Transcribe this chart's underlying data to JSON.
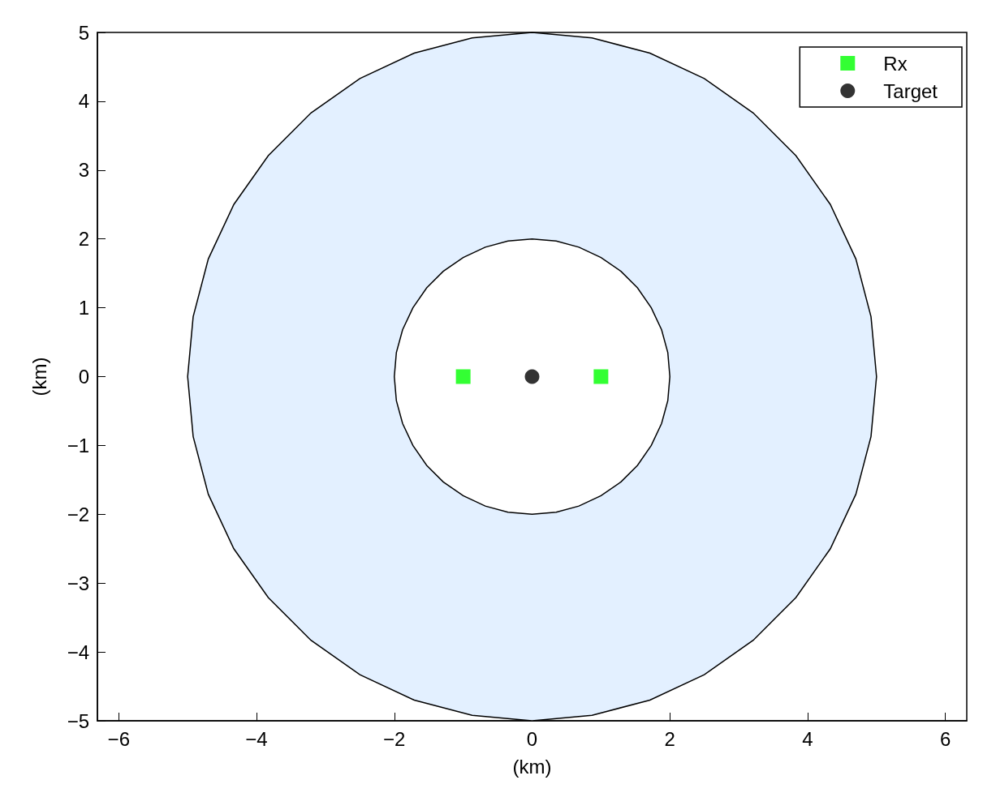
{
  "chart_data": {
    "type": "scatter",
    "xlabel": "(km)",
    "ylabel": "(km)",
    "xlim": [
      -6.31,
      6.31
    ],
    "ylim": [
      -5,
      5
    ],
    "xticks": [
      {
        "value": -6,
        "label": "−6"
      },
      {
        "value": -4,
        "label": "−4"
      },
      {
        "value": -2,
        "label": "−2"
      },
      0,
      2,
      4,
      6
    ],
    "yticks": [
      {
        "value": -5,
        "label": "−5"
      },
      {
        "value": -4,
        "label": "−4"
      },
      {
        "value": -3,
        "label": "−3"
      },
      {
        "value": -2,
        "label": "−2"
      },
      {
        "value": -1,
        "label": "−1"
      },
      0,
      1,
      2,
      3,
      4,
      5
    ],
    "legend": "top right",
    "series": [
      {
        "type": "area",
        "color": "#e3f0ff",
        "x": [
          5,
          4.92,
          4.7,
          4.33,
          3.83,
          3.21,
          2.5,
          1.71,
          0.87,
          0,
          -0.87,
          -1.71,
          -2.5,
          -3.21,
          -3.83,
          -4.33,
          -4.7,
          -4.92,
          -5,
          -4.92,
          -4.7,
          -4.33,
          -3.83,
          -3.21,
          -2.5,
          -1.71,
          -0.87,
          0,
          0.87,
          1.71,
          2.5,
          3.21,
          3.83,
          4.33,
          4.7,
          4.92
        ],
        "values": [
          0,
          0.87,
          1.71,
          2.5,
          3.21,
          3.83,
          4.33,
          4.7,
          4.92,
          5,
          4.92,
          4.7,
          4.33,
          3.83,
          3.21,
          2.5,
          1.71,
          0.87,
          0,
          -0.87,
          -1.71,
          -2.5,
          -3.21,
          -3.83,
          -4.33,
          -4.7,
          -4.92,
          -5,
          -4.92,
          -4.7,
          -4.33,
          -3.83,
          -3.21,
          -2.5,
          -1.71,
          -0.87
        ]
      },
      {
        "type": "area",
        "color": "#ffffff",
        "x": [
          2,
          1.97,
          1.88,
          1.73,
          1.53,
          1.29,
          1,
          0.68,
          0.35,
          0,
          -0.35,
          -0.68,
          -1,
          -1.29,
          -1.53,
          -1.73,
          -1.88,
          -1.97,
          -2,
          -1.97,
          -1.88,
          -1.73,
          -1.53,
          -1.29,
          -1,
          -0.68,
          -0.35,
          0,
          0.35,
          0.68,
          1,
          1.29,
          1.53,
          1.73,
          1.88,
          1.97
        ],
        "values": [
          0,
          0.35,
          0.68,
          1,
          1.29,
          1.53,
          1.73,
          1.88,
          1.97,
          2,
          1.97,
          1.88,
          1.73,
          1.53,
          1.29,
          1,
          0.68,
          0.35,
          0,
          -0.35,
          -0.68,
          -1,
          -1.29,
          -1.53,
          -1.73,
          -1.88,
          -1.97,
          -2,
          -1.97,
          -1.88,
          -1.73,
          -1.53,
          -1.29,
          -1,
          -0.68,
          -0.35
        ]
      },
      {
        "name": "Rx",
        "color": "#00ff00",
        "marker": "square",
        "x": [
          -1,
          1
        ],
        "values": [
          0,
          0
        ]
      },
      {
        "name": "Target",
        "color": "#000000",
        "marker": "circle",
        "x": [
          0
        ],
        "values": [
          0
        ]
      }
    ]
  }
}
